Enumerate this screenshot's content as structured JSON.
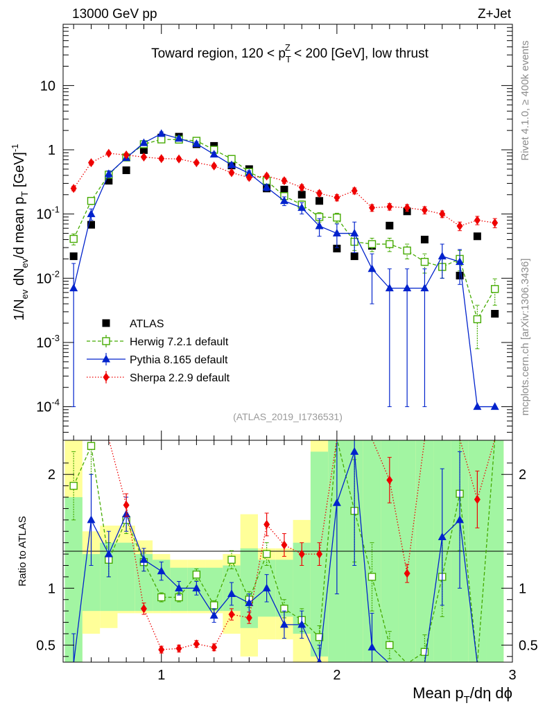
{
  "header": {
    "energy_label": "13000 GeV pp",
    "process_label": "Z+Jet",
    "watermark": "(ATLAS_2019_I1736531)",
    "side_rivet": "Rivet 4.1.0, ≥ 400k events",
    "side_mcplots": "mcplots.cern.ch [arXiv:1306.3436]"
  },
  "chart_data": {
    "type": "scatter",
    "title": {
      "pre": "Toward region, 120 < p",
      "sub": "T",
      "sup": "Z",
      "post": " < 200 [GeV], low thrust"
    },
    "ylabel": {
      "part1": "1/N",
      "sub1": "ev",
      "part2": " dN",
      "sub2": "ev",
      "part3": "/d mean p",
      "sub3": "T",
      "part4": " [GeV]",
      "sup4": "-1"
    },
    "ratio_ylabel": "Ratio to ATLAS",
    "xlabel": {
      "part1": "Mean p",
      "sub1": "T",
      "part2": "/dη dϕ"
    },
    "xlim": [
      0.44,
      3.0
    ],
    "ylim": [
      3e-05,
      90
    ],
    "ratio_ylim": [
      0.35,
      2.3
    ],
    "x_ticks": [
      {
        "v": 1,
        "label": "1"
      },
      {
        "v": 2,
        "label": "2"
      },
      {
        "v": 3,
        "label": "3"
      }
    ],
    "y_ticks": [
      {
        "v": 10,
        "label": "10",
        "exp": ""
      },
      {
        "v": 1,
        "label": "1",
        "exp": ""
      },
      {
        "v": 0.1,
        "label": "10",
        "exp": "-1"
      },
      {
        "v": 0.01,
        "label": "10",
        "exp": "-2"
      },
      {
        "v": 0.001,
        "label": "10",
        "exp": "-3"
      },
      {
        "v": 0.0001,
        "label": "10",
        "exp": "-4"
      }
    ],
    "ratio_ticks": [
      {
        "v": 0.5,
        "label": "0.5"
      },
      {
        "v": 1,
        "label": "1"
      },
      {
        "v": 2,
        "label": "2"
      }
    ],
    "x": [
      0.5,
      0.6,
      0.7,
      0.8,
      0.9,
      1.0,
      1.1,
      1.2,
      1.3,
      1.4,
      1.5,
      1.6,
      1.7,
      1.8,
      1.9,
      2.0,
      2.1,
      2.2,
      2.3,
      2.4,
      2.5,
      2.6,
      2.7,
      2.8,
      2.9
    ],
    "band": {
      "inner_lo": [
        0.2,
        0.8,
        0.8,
        0.8,
        0.8,
        0.8,
        0.8,
        0.8,
        0.8,
        0.8,
        0.65,
        0.75,
        0.75,
        0.6,
        0.4,
        0.35,
        0.35,
        0.35,
        0.35,
        0.35,
        0.35,
        0.35,
        0.35,
        0.35,
        0.35
      ],
      "inner_hi": [
        1.8,
        1.3,
        1.4,
        1.4,
        1.3,
        1.25,
        1.18,
        1.18,
        1.18,
        1.2,
        1.35,
        1.25,
        1.25,
        1.4,
        2.2,
        2.3,
        2.3,
        2.3,
        2.3,
        2.3,
        2.3,
        2.3,
        2.3,
        2.3,
        2.3
      ],
      "outer_lo": [
        0.2,
        0.6,
        0.65,
        0.78,
        0.78,
        0.78,
        0.78,
        0.78,
        0.78,
        0.6,
        0.4,
        0.55,
        0.55,
        0.35,
        0.3,
        0.3,
        0.3,
        0.3,
        0.3,
        0.3,
        0.3,
        0.3,
        0.3,
        0.3,
        0.3
      ],
      "outer_hi": [
        2.3,
        1.5,
        1.55,
        1.55,
        1.42,
        1.3,
        1.25,
        1.25,
        1.25,
        1.3,
        1.65,
        1.35,
        1.35,
        1.6,
        2.3,
        2.3,
        2.3,
        2.3,
        2.3,
        2.3,
        2.3,
        2.3,
        2.3,
        2.3,
        2.3
      ]
    },
    "series": [
      {
        "name": "ATLAS",
        "marker": "square",
        "color": "#000000",
        "dash": "",
        "line": false,
        "values": [
          0.022,
          0.068,
          0.33,
          0.48,
          0.99,
          1.55,
          1.6,
          1.22,
          1.15,
          0.57,
          0.5,
          0.25,
          0.24,
          0.2,
          0.16,
          0.029,
          0.022,
          0.032,
          0.066,
          0.11,
          0.04,
          0.015,
          0.011,
          0.045,
          0.0028
        ],
        "err_lo": [
          0,
          0,
          0,
          0,
          0,
          0,
          0,
          0,
          0,
          0,
          0,
          0,
          0,
          0,
          0,
          0,
          0,
          0,
          0,
          0,
          0,
          0,
          0,
          0,
          0
        ],
        "err_hi": [
          0,
          0,
          0,
          0,
          0,
          0,
          0,
          0,
          0,
          0,
          0,
          0,
          0,
          0,
          0,
          0,
          0,
          0,
          0,
          0,
          0,
          0,
          0,
          0,
          0
        ],
        "ratio": [],
        "ratio_lo": [],
        "ratio_hi": []
      },
      {
        "name": "Herwig 7.2.1 default",
        "marker": "open-square",
        "color": "#44aa00",
        "dash": "5,3",
        "line": true,
        "values": [
          0.041,
          0.16,
          0.41,
          0.76,
          1.22,
          1.45,
          1.44,
          1.38,
          1.0,
          0.72,
          0.45,
          0.33,
          0.19,
          0.14,
          0.09,
          0.088,
          0.037,
          0.034,
          0.034,
          0.027,
          0.018,
          0.015,
          0.02,
          0.0023,
          0.0068
        ],
        "err_lo": [
          0.008,
          0.02,
          0.04,
          0.06,
          0.08,
          0.09,
          0.09,
          0.08,
          0.07,
          0.06,
          0.04,
          0.03,
          0.02,
          0.02,
          0.015,
          0.015,
          0.01,
          0.008,
          0.008,
          0.007,
          0.006,
          0.005,
          0.007,
          0.0015,
          0.003
        ],
        "err_hi": [
          0.008,
          0.02,
          0.04,
          0.06,
          0.08,
          0.09,
          0.09,
          0.08,
          0.07,
          0.06,
          0.04,
          0.03,
          0.02,
          0.02,
          0.015,
          0.015,
          0.01,
          0.008,
          0.008,
          0.007,
          0.006,
          0.005,
          0.007,
          0.0015,
          0.003
        ],
        "ratio": [
          1.9,
          2.25,
          1.25,
          1.6,
          1.23,
          0.92,
          0.92,
          1.12,
          0.85,
          1.25,
          0.9,
          1.3,
          0.82,
          0.72,
          0.57,
          3.0,
          1.68,
          1.1,
          0.5,
          0.25,
          0.44,
          1.1,
          1.83,
          0.05,
          2.35
        ],
        "ratio_lo": [
          0.3,
          0.25,
          0.15,
          0.12,
          0.08,
          0.04,
          0.04,
          0.05,
          0.04,
          0.08,
          0.07,
          0.1,
          0.08,
          0.1,
          0.1,
          0,
          0.45,
          0.3,
          0.12,
          0,
          0.15,
          0.35,
          0.5,
          0,
          0
        ],
        "ratio_hi": [
          0.3,
          0.25,
          0.15,
          0.12,
          0.08,
          0.04,
          0.04,
          0.05,
          0.04,
          0.08,
          0.07,
          0.1,
          0.08,
          0.1,
          0.1,
          0,
          0.45,
          0.3,
          0.12,
          0,
          0.15,
          0.35,
          0.5,
          0,
          0
        ]
      },
      {
        "name": "Pythia 8.165 default",
        "marker": "triangle",
        "color": "#0022cc",
        "dash": "",
        "line": true,
        "values": [
          0.007,
          0.1,
          0.42,
          0.75,
          1.28,
          1.78,
          1.5,
          1.24,
          0.85,
          0.58,
          0.43,
          0.26,
          0.16,
          0.125,
          0.065,
          0.05,
          0.05,
          0.014,
          0.007,
          0.007,
          0.007,
          0.022,
          0.018,
          0.0001,
          0.0001
        ],
        "err_lo": [
          0.0069,
          0.02,
          0.05,
          0.07,
          0.1,
          0.12,
          0.1,
          0.09,
          0.07,
          0.05,
          0.04,
          0.03,
          0.025,
          0.025,
          0.02,
          0.02,
          0.025,
          0.01,
          0.0069,
          0.0069,
          0.0069,
          0.012,
          0.01,
          0,
          0
        ],
        "err_hi": [
          0.01,
          0.02,
          0.05,
          0.07,
          0.1,
          0.12,
          0.1,
          0.09,
          0.07,
          0.05,
          0.04,
          0.03,
          0.025,
          0.025,
          0.02,
          0.02,
          0.025,
          0.01,
          0.007,
          0.007,
          0.007,
          0.012,
          0.01,
          0,
          0
        ],
        "ratio": [
          0.3,
          1.6,
          1.3,
          1.65,
          1.25,
          1.15,
          1.0,
          1.0,
          0.76,
          0.95,
          0.87,
          1.0,
          0.68,
          0.68,
          0.35,
          1.75,
          2.2,
          0.48,
          0.1,
          0.05,
          0.1,
          1.45,
          1.6,
          0.01,
          0.01
        ],
        "ratio_lo": [
          0.3,
          0.4,
          0.2,
          0.15,
          0.1,
          0.08,
          0.06,
          0.06,
          0.06,
          0.1,
          0.08,
          0.12,
          0.12,
          0.12,
          0.15,
          0.8,
          1.0,
          0.3,
          0,
          0,
          0,
          0.6,
          0.6,
          0,
          0
        ],
        "ratio_hi": [
          0.3,
          0.4,
          0.2,
          0.15,
          0.1,
          0.08,
          0.06,
          0.06,
          0.06,
          0.1,
          0.08,
          0.12,
          0.12,
          0.12,
          0.15,
          0.8,
          1.0,
          0.3,
          0,
          0,
          0,
          0.6,
          0.6,
          0,
          0
        ]
      },
      {
        "name": "Sherpa 2.2.9 default",
        "marker": "diamond",
        "color": "#ee0000",
        "dash": "1.5,2.5",
        "line": true,
        "values": [
          0.25,
          0.63,
          0.88,
          0.83,
          0.77,
          0.73,
          0.72,
          0.63,
          0.56,
          0.44,
          0.37,
          0.39,
          0.33,
          0.26,
          0.21,
          0.18,
          0.23,
          0.125,
          0.13,
          0.125,
          0.115,
          0.1,
          0.065,
          0.08,
          0.073
        ],
        "err_lo": [
          0.02,
          0.04,
          0.05,
          0.05,
          0.05,
          0.05,
          0.05,
          0.04,
          0.04,
          0.03,
          0.03,
          0.03,
          0.03,
          0.025,
          0.02,
          0.02,
          0.025,
          0.015,
          0.015,
          0.015,
          0.015,
          0.012,
          0.01,
          0.012,
          0.012
        ],
        "err_hi": [
          0.02,
          0.04,
          0.05,
          0.05,
          0.05,
          0.05,
          0.05,
          0.04,
          0.04,
          0.03,
          0.03,
          0.03,
          0.03,
          0.025,
          0.02,
          0.02,
          0.025,
          0.015,
          0.015,
          0.015,
          0.015,
          0.012,
          0.01,
          0.012,
          0.012
        ],
        "ratio": [
          11,
          9,
          2.65,
          1.73,
          0.82,
          0.46,
          0.47,
          0.51,
          0.48,
          0.77,
          0.74,
          1.56,
          1.38,
          1.3,
          1.3,
          6,
          10,
          3.9,
          1.95,
          1.13,
          2.9,
          6.7,
          5.9,
          1.78,
          26
        ],
        "ratio_lo": [
          0,
          0,
          0.3,
          0.1,
          0.05,
          0.03,
          0.03,
          0.03,
          0.03,
          0.05,
          0.05,
          0.1,
          0.1,
          0.1,
          0.1,
          0,
          0,
          0,
          0.2,
          0.08,
          0,
          0,
          0,
          0.25,
          0
        ],
        "ratio_hi": [
          0,
          0,
          0.3,
          0.1,
          0.05,
          0.03,
          0.03,
          0.03,
          0.03,
          0.05,
          0.05,
          0.1,
          0.1,
          0.1,
          0.1,
          0,
          0,
          0,
          0.2,
          0.08,
          0,
          0,
          0,
          0.25,
          0
        ]
      }
    ],
    "legend_position": "lower-left"
  }
}
